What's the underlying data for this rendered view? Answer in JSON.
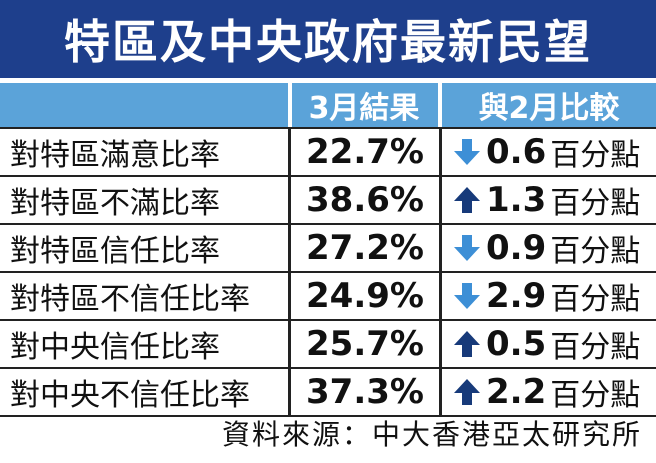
{
  "title": "特區及中央政府最新民望",
  "header": {
    "col_result": "3月結果",
    "col_compare": "與2月比較"
  },
  "rows": [
    {
      "label": "對特區滿意比率",
      "value": "22.7%",
      "direction": "down",
      "change": "0.6",
      "unit": "百分點"
    },
    {
      "label": "對特區不滿比率",
      "value": "38.6%",
      "direction": "up",
      "change": "1.3",
      "unit": "百分點"
    },
    {
      "label": "對特區信任比率",
      "value": "27.2%",
      "direction": "down",
      "change": "0.9",
      "unit": "百分點"
    },
    {
      "label": "對特區不信任比率",
      "value": "24.9%",
      "direction": "down",
      "change": "2.9",
      "unit": "百分點"
    },
    {
      "label": "對中央信任比率",
      "value": "25.7%",
      "direction": "up",
      "change": "0.5",
      "unit": "百分點"
    },
    {
      "label": "對中央不信任比率",
      "value": "37.3%",
      "direction": "up",
      "change": "2.2",
      "unit": "百分點"
    }
  ],
  "source": "資料來源：中大香港亞太研究所",
  "colors": {
    "title_bg": "#1e3f8c",
    "header_bg": "#5ba3d9",
    "arrow_down": "#3d8fd6",
    "arrow_up": "#173a7a"
  },
  "icons": {
    "down": "arrow-down-icon",
    "up": "arrow-up-icon"
  }
}
